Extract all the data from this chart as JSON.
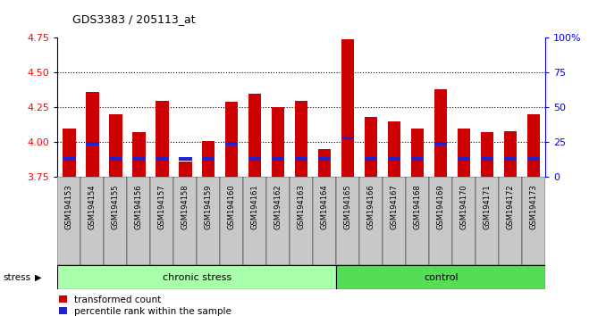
{
  "title": "GDS3383 / 205113_at",
  "samples": [
    "GSM194153",
    "GSM194154",
    "GSM194155",
    "GSM194156",
    "GSM194157",
    "GSM194158",
    "GSM194159",
    "GSM194160",
    "GSM194161",
    "GSM194162",
    "GSM194163",
    "GSM194164",
    "GSM194165",
    "GSM194166",
    "GSM194167",
    "GSM194168",
    "GSM194169",
    "GSM194170",
    "GSM194171",
    "GSM194172",
    "GSM194173"
  ],
  "transformed_count": [
    4.1,
    4.36,
    4.2,
    4.07,
    4.3,
    3.86,
    4.01,
    4.29,
    4.35,
    4.25,
    4.3,
    3.95,
    4.74,
    4.18,
    4.15,
    4.1,
    4.38,
    4.1,
    4.07,
    4.08,
    4.2
  ],
  "percentile_values": [
    13,
    24,
    13,
    13,
    13,
    13,
    13,
    24,
    13,
    13,
    13,
    13,
    28,
    13,
    13,
    13,
    24,
    13,
    13,
    13,
    13
  ],
  "bar_bottom": 3.75,
  "ylim_min": 3.75,
  "ylim_max": 4.75,
  "yticks": [
    3.75,
    4.0,
    4.25,
    4.5,
    4.75
  ],
  "bar_color": "#cc0000",
  "percentile_color": "#2222cc",
  "plot_bg_color": "#ffffff",
  "xticklabel_bg": "#c8c8c8",
  "chronic_stress_color": "#aaffaa",
  "control_color": "#55dd55",
  "chronic_stress_label": "chronic stress",
  "control_label": "control",
  "stress_label": "stress",
  "legend_red": "transformed count",
  "legend_blue": "percentile rank within the sample",
  "dotted_yticks": [
    4.0,
    4.25,
    4.5
  ],
  "right_yticks": [
    0,
    25,
    50,
    75,
    100
  ],
  "right_ytick_labels": [
    "0",
    "25",
    "50",
    "75",
    "100%"
  ],
  "n_chronic": 12,
  "n_control": 9
}
